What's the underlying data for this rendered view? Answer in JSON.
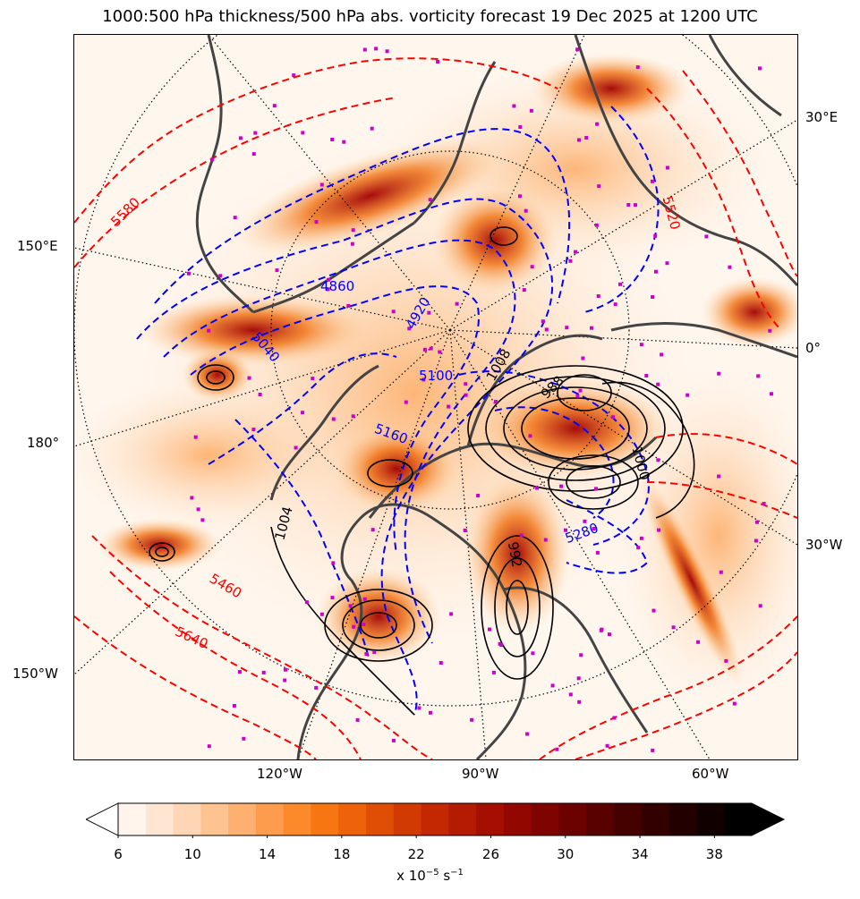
{
  "title": "1000:500 hPa thickness/500 hPa abs. vorticity forecast 19 Dec 2025 at 1200 UTC",
  "map": {
    "projection": "north-polar-stereographic",
    "longitude_labels": [
      {
        "text": "30°E",
        "side": "right"
      },
      {
        "text": "0°",
        "side": "right"
      },
      {
        "text": "30°W",
        "side": "right"
      },
      {
        "text": "150°E",
        "side": "left"
      },
      {
        "text": "180°",
        "side": "left"
      },
      {
        "text": "150°W",
        "side": "left"
      },
      {
        "text": "120°W",
        "side": "bottom"
      },
      {
        "text": "90°W",
        "side": "bottom"
      },
      {
        "text": "60°W",
        "side": "bottom"
      }
    ],
    "thickness_labels": [
      "5580",
      "5460",
      "5640",
      "5100",
      "5160",
      "5280",
      "5040",
      "4860",
      "4920",
      "5520"
    ],
    "pressure_labels": [
      "1000",
      "1004",
      "1008",
      "988",
      "992"
    ],
    "colors": {
      "thickness_cold": "#0000ff",
      "thickness_warm": "#ff0000",
      "pressure": "#000000",
      "coastline": "#444444",
      "point_markers": "#cc00cc"
    }
  },
  "colorbar": {
    "label_prefix": "x 10",
    "label_exp1": "−5",
    "label_unit": " s",
    "label_exp2": "−1",
    "ticks": [
      "6",
      "10",
      "14",
      "18",
      "22",
      "26",
      "30",
      "34",
      "38"
    ],
    "range": [
      6,
      40
    ],
    "extend": "both",
    "colors": [
      "#fff5ec",
      "#fee6d3",
      "#fed5b5",
      "#fdc492",
      "#fdb06f",
      "#fd9c4d",
      "#fc8a2b",
      "#f77611",
      "#ee620a",
      "#e04e06",
      "#d23a04",
      "#c42803",
      "#b51a02",
      "#a40f01",
      "#920800",
      "#7f0400",
      "#6b0200",
      "#580100",
      "#450000",
      "#330000",
      "#220000",
      "#110000",
      "#000000"
    ]
  }
}
